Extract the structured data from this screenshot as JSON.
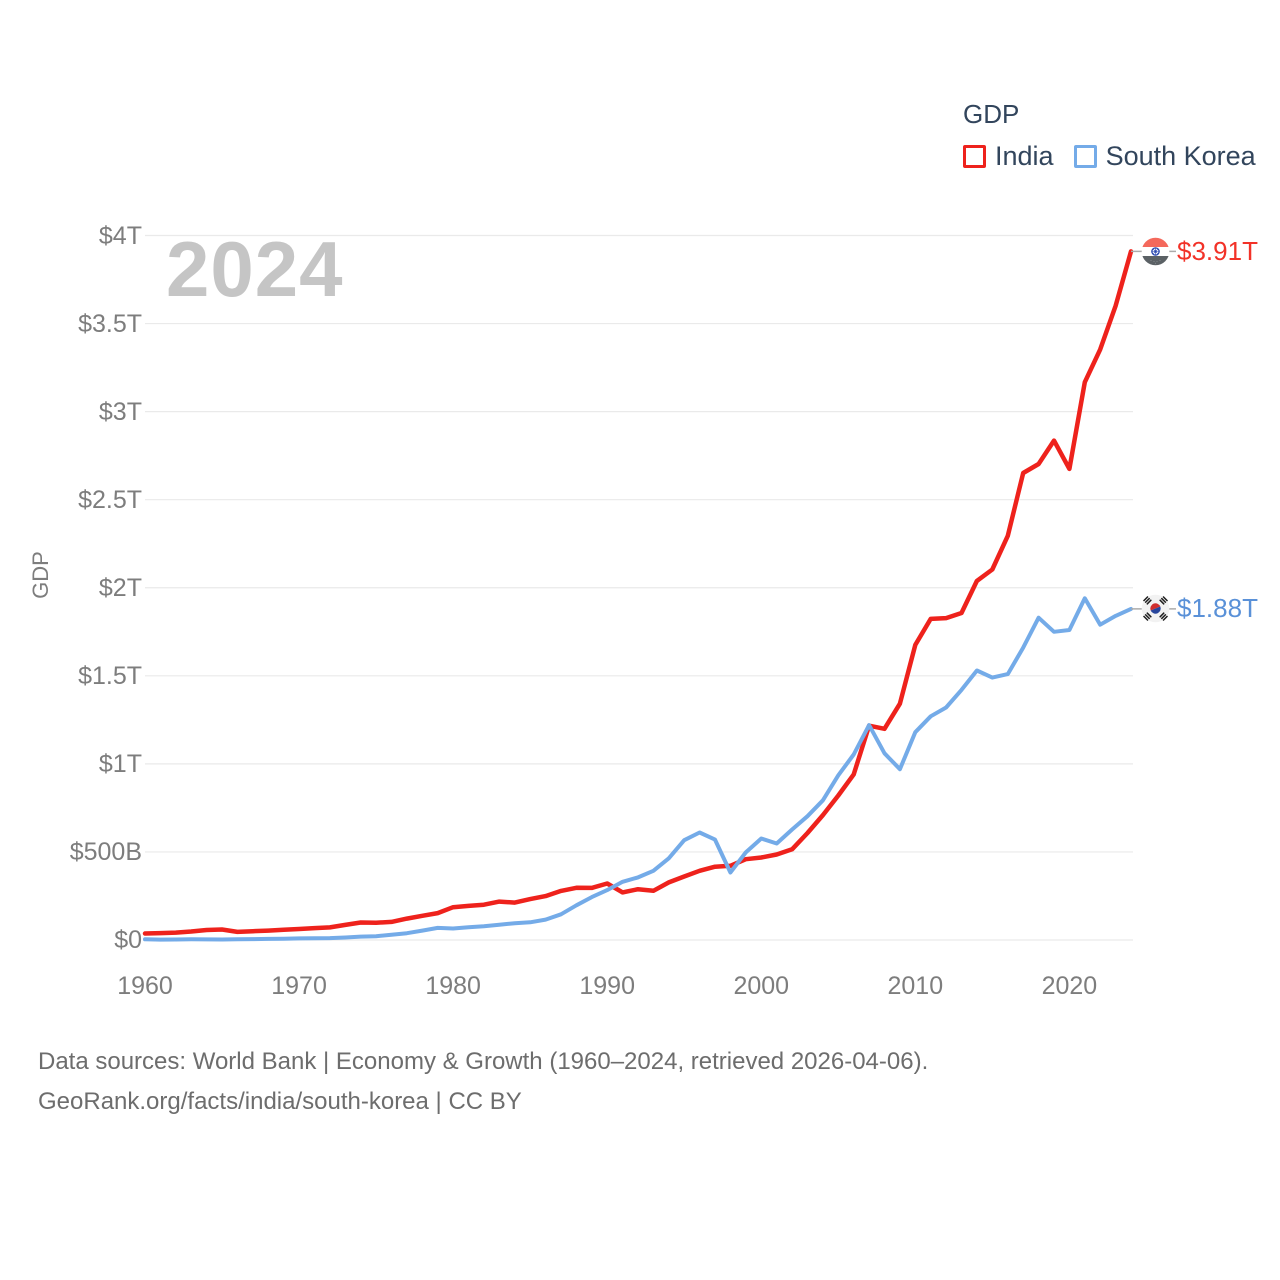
{
  "watermark_year": "2024",
  "legend": {
    "title": "GDP",
    "items": [
      {
        "label": "India",
        "color": "#ee221c"
      },
      {
        "label": "South Korea",
        "color": "#74abe8"
      }
    ]
  },
  "y_axis": {
    "title": "GDP",
    "ticks": [
      {
        "label": "$0",
        "value_billions": 0
      },
      {
        "label": "$500B",
        "value_billions": 500
      },
      {
        "label": "$1T",
        "value_billions": 1000
      },
      {
        "label": "$1.5T",
        "value_billions": 1500
      },
      {
        "label": "$2T",
        "value_billions": 2000
      },
      {
        "label": "$2.5T",
        "value_billions": 2500
      },
      {
        "label": "$3T",
        "value_billions": 3000
      },
      {
        "label": "$3.5T",
        "value_billions": 3500
      },
      {
        "label": "$4T",
        "value_billions": 4000
      }
    ]
  },
  "x_axis": {
    "ticks": [
      {
        "label": "1960",
        "year": 1960
      },
      {
        "label": "1970",
        "year": 1970
      },
      {
        "label": "1980",
        "year": 1980
      },
      {
        "label": "1990",
        "year": 1990
      },
      {
        "label": "2000",
        "year": 2000
      },
      {
        "label": "2010",
        "year": 2010
      },
      {
        "label": "2020",
        "year": 2020
      }
    ]
  },
  "end_labels": [
    {
      "series": "India",
      "value": "$3.91T",
      "color": "#f23228",
      "flag": "india-flag"
    },
    {
      "series": "South Korea",
      "value": "$1.88T",
      "color": "#5a91d8",
      "flag": "south-korea-flag"
    }
  ],
  "footer": {
    "line1": "Data sources: World Bank | Economy & Growth (1960–2024, retrieved 2026-04-06).",
    "line2": "GeoRank.org/facts/india/south-korea | CC BY"
  },
  "colors": {
    "grid": "#eaeaea",
    "leader_line": "#ababab",
    "axis_text": "#7d7d7d",
    "legend_text": "#32455c",
    "watermark": "#c5c5c5",
    "india_red": "#ee221c",
    "korea_blue": "#74abe8"
  },
  "chart_data": {
    "type": "line",
    "title": "GDP",
    "unit": "current US$, billions",
    "xlabel": "",
    "ylabel": "GDP",
    "grid": "horizontal",
    "legend_position": "top-right",
    "xlim": [
      1960,
      2024
    ],
    "ylim_billions": [
      0,
      4000
    ],
    "x": [
      1960,
      1961,
      1962,
      1963,
      1964,
      1965,
      1966,
      1967,
      1968,
      1969,
      1970,
      1971,
      1972,
      1973,
      1974,
      1975,
      1976,
      1977,
      1978,
      1979,
      1980,
      1981,
      1982,
      1983,
      1984,
      1985,
      1986,
      1987,
      1988,
      1989,
      1990,
      1991,
      1992,
      1993,
      1994,
      1995,
      1996,
      1997,
      1998,
      1999,
      2000,
      2001,
      2002,
      2003,
      2004,
      2005,
      2006,
      2007,
      2008,
      2009,
      2010,
      2011,
      2012,
      2013,
      2014,
      2015,
      2016,
      2017,
      2018,
      2019,
      2020,
      2021,
      2022,
      2023,
      2024
    ],
    "series": [
      {
        "name": "India",
        "color": "#ee221c",
        "end_label": "$3.91T",
        "values_billions_usd": [
          37.0,
          39.2,
          42.2,
          48.4,
          56.5,
          59.6,
          45.9,
          50.1,
          53.1,
          58.4,
          62.4,
          67.4,
          71.5,
          85.5,
          99.5,
          98.5,
          102.7,
          121.5,
          137.3,
          153.0,
          186.3,
          193.5,
          200.7,
          218.3,
          212.2,
          232.5,
          249.0,
          279.0,
          296.6,
          296.0,
          321.0,
          270.1,
          288.2,
          279.3,
          327.3,
          360.3,
          392.9,
          415.9,
          421.4,
          458.8,
          468.4,
          485.4,
          514.9,
          607.7,
          709.1,
          820.4,
          940.3,
          1216.7,
          1198.9,
          1341.9,
          1675.6,
          1823.0,
          1827.6,
          1856.7,
          2039.1,
          2103.6,
          2294.8,
          2651.5,
          2702.9,
          2835.6,
          2674.9,
          3167.3,
          3353.5,
          3600.0,
          3910.0
        ]
      },
      {
        "name": "South Korea",
        "color": "#74abe8",
        "end_label": "$1.88T",
        "values_billions_usd": [
          4.0,
          2.4,
          2.8,
          4.0,
          3.5,
          3.1,
          3.9,
          4.9,
          6.1,
          7.5,
          9.0,
          9.9,
          10.8,
          14.0,
          19.5,
          21.7,
          29.8,
          38.4,
          53.2,
          68.6,
          65.4,
          72.9,
          78.4,
          87.0,
          95.6,
          100.3,
          115.6,
          146.1,
          196.9,
          243.5,
          283.4,
          330.7,
          355.5,
          392.7,
          463.6,
          566.6,
          610.2,
          569.8,
          383.3,
          497.5,
          576.2,
          547.7,
          627.2,
          702.7,
          793.2,
          934.9,
          1053.2,
          1220.0,
          1060.0,
          970.0,
          1180.0,
          1270.0,
          1320.0,
          1420.0,
          1530.0,
          1490.0,
          1510.0,
          1660.0,
          1830.0,
          1750.0,
          1760.0,
          1940.0,
          1790.0,
          1840.0,
          1880.0
        ]
      }
    ]
  }
}
